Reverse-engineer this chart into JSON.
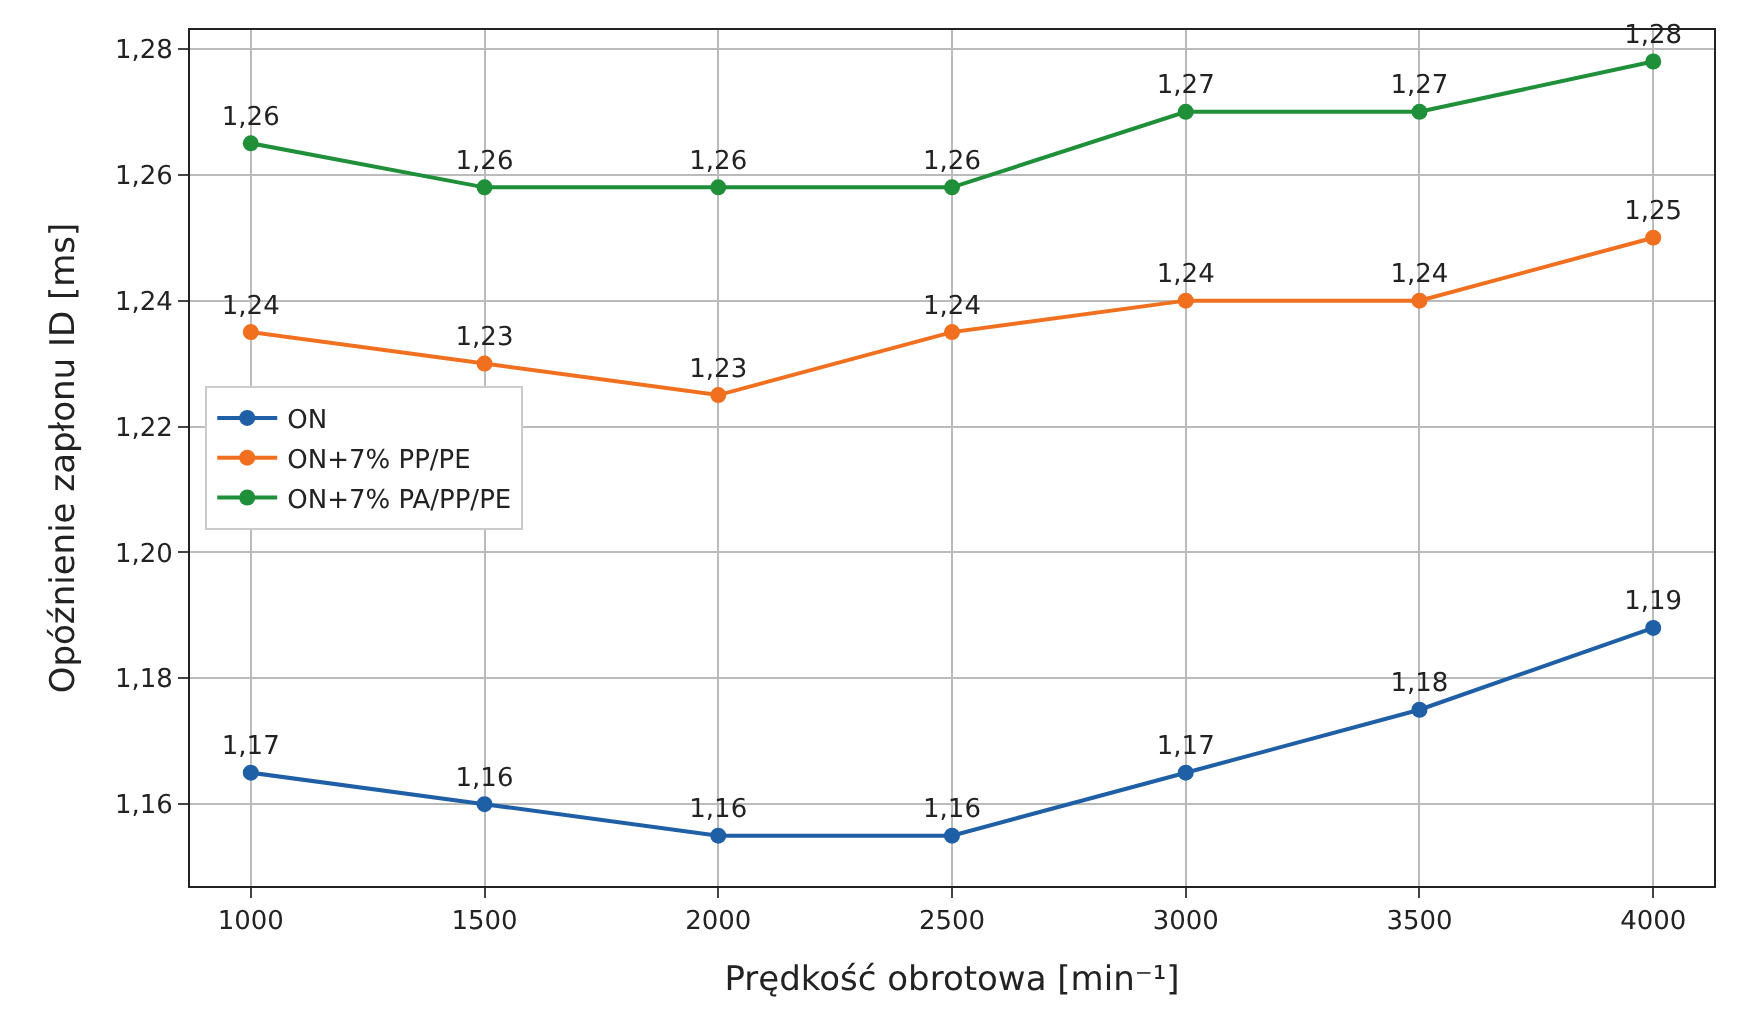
{
  "chart_data": {
    "type": "line",
    "xlabel": "Prędkość obrotowa [min⁻¹]",
    "ylabel": "Opóźnienie zapłonu ID [ms]",
    "x": [
      1000,
      1500,
      2000,
      2500,
      3000,
      3500,
      4000
    ],
    "series": [
      {
        "name": "ON",
        "color": "#1f5fa6",
        "values": [
          1.165,
          1.16,
          1.155,
          1.155,
          1.165,
          1.175,
          1.188
        ],
        "value_labels": [
          "1,17",
          "1,16",
          "1,16",
          "1,16",
          "1,17",
          "1,18",
          "1,19"
        ]
      },
      {
        "name": "ON+7% PP/PE",
        "color": "#f07020",
        "values": [
          1.235,
          1.23,
          1.225,
          1.235,
          1.24,
          1.24,
          1.25
        ],
        "value_labels": [
          "1,24",
          "1,23",
          "1,23",
          "1,24",
          "1,24",
          "1,24",
          "1,25"
        ]
      },
      {
        "name": "ON+7% PA/PP/PE",
        "color": "#1f8f3a",
        "values": [
          1.265,
          1.258,
          1.258,
          1.258,
          1.27,
          1.27,
          1.278
        ],
        "value_labels": [
          "1,26",
          "1,26",
          "1,26",
          "1,26",
          "1,27",
          "1,27",
          "1,28"
        ]
      }
    ],
    "xlim": [
      870,
      4130
    ],
    "xticks": [
      1000,
      1500,
      2000,
      2500,
      3000,
      3500,
      4000
    ],
    "ylim": [
      1.147,
      1.283
    ],
    "yticks": [
      {
        "value": 1.16,
        "label": "1,16"
      },
      {
        "value": 1.18,
        "label": "1,18"
      },
      {
        "value": 1.2,
        "label": "1,20"
      },
      {
        "value": 1.22,
        "label": "1,22"
      },
      {
        "value": 1.24,
        "label": "1,24"
      },
      {
        "value": 1.26,
        "label": "1,26"
      },
      {
        "value": 1.28,
        "label": "1,28"
      }
    ],
    "grid": true,
    "legend": "left",
    "marker": "circle",
    "line_style": "solid"
  }
}
